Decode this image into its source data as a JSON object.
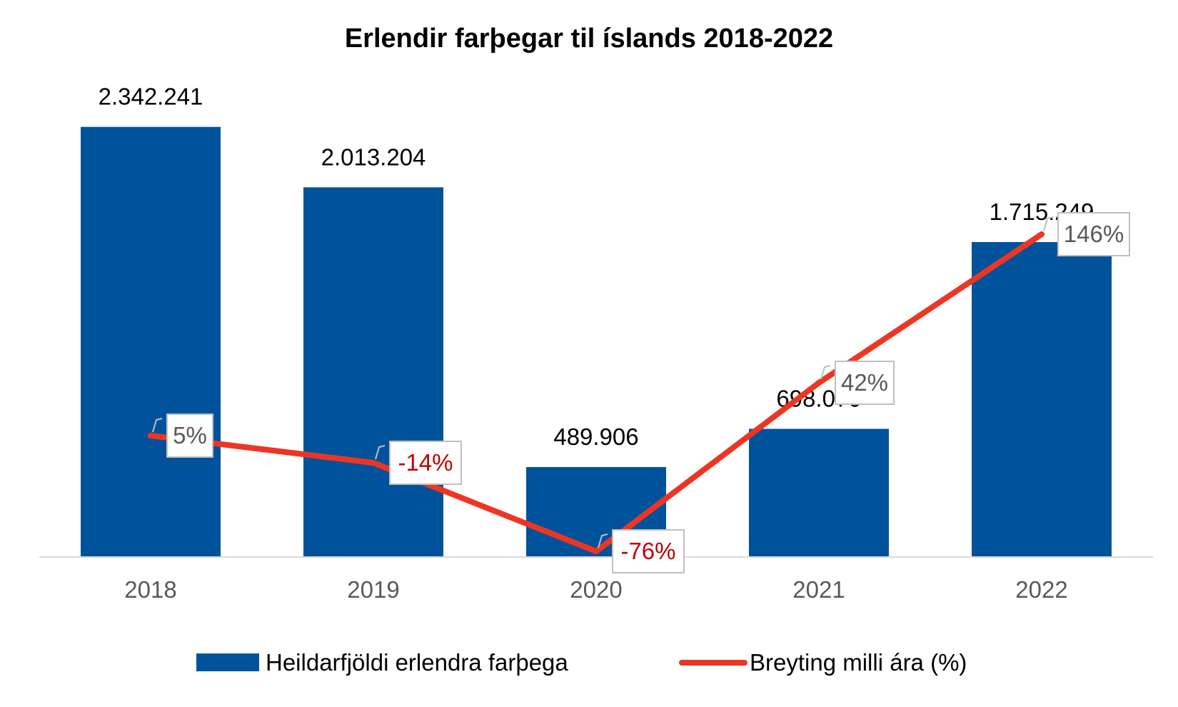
{
  "chart_data": {
    "type": "bar",
    "title": "Erlendir farþegar til íslands 2018-2022",
    "categories": [
      "2018",
      "2019",
      "2020",
      "2021",
      "2022"
    ],
    "series": [
      {
        "name": "Heildarfjöldi erlendra farþega",
        "type": "bar",
        "color": "#00539B",
        "values": [
          2342241,
          2013204,
          489906,
          698070,
          1715249
        ],
        "labels": [
          "2.342.241",
          "2.013.204",
          "489.906",
          "698.070",
          "1.715.249"
        ]
      },
      {
        "name": "Breyting milli ára (%)",
        "type": "line",
        "color": "#EE3524",
        "values": [
          5,
          -14,
          -76,
          42,
          146
        ],
        "labels": [
          "5%",
          "-14%",
          "-76%",
          "42%",
          "146%"
        ]
      }
    ],
    "negative_label_color": "#C00000",
    "positive_label_color": "#595959",
    "legend_position": "bottom",
    "grid": false
  }
}
